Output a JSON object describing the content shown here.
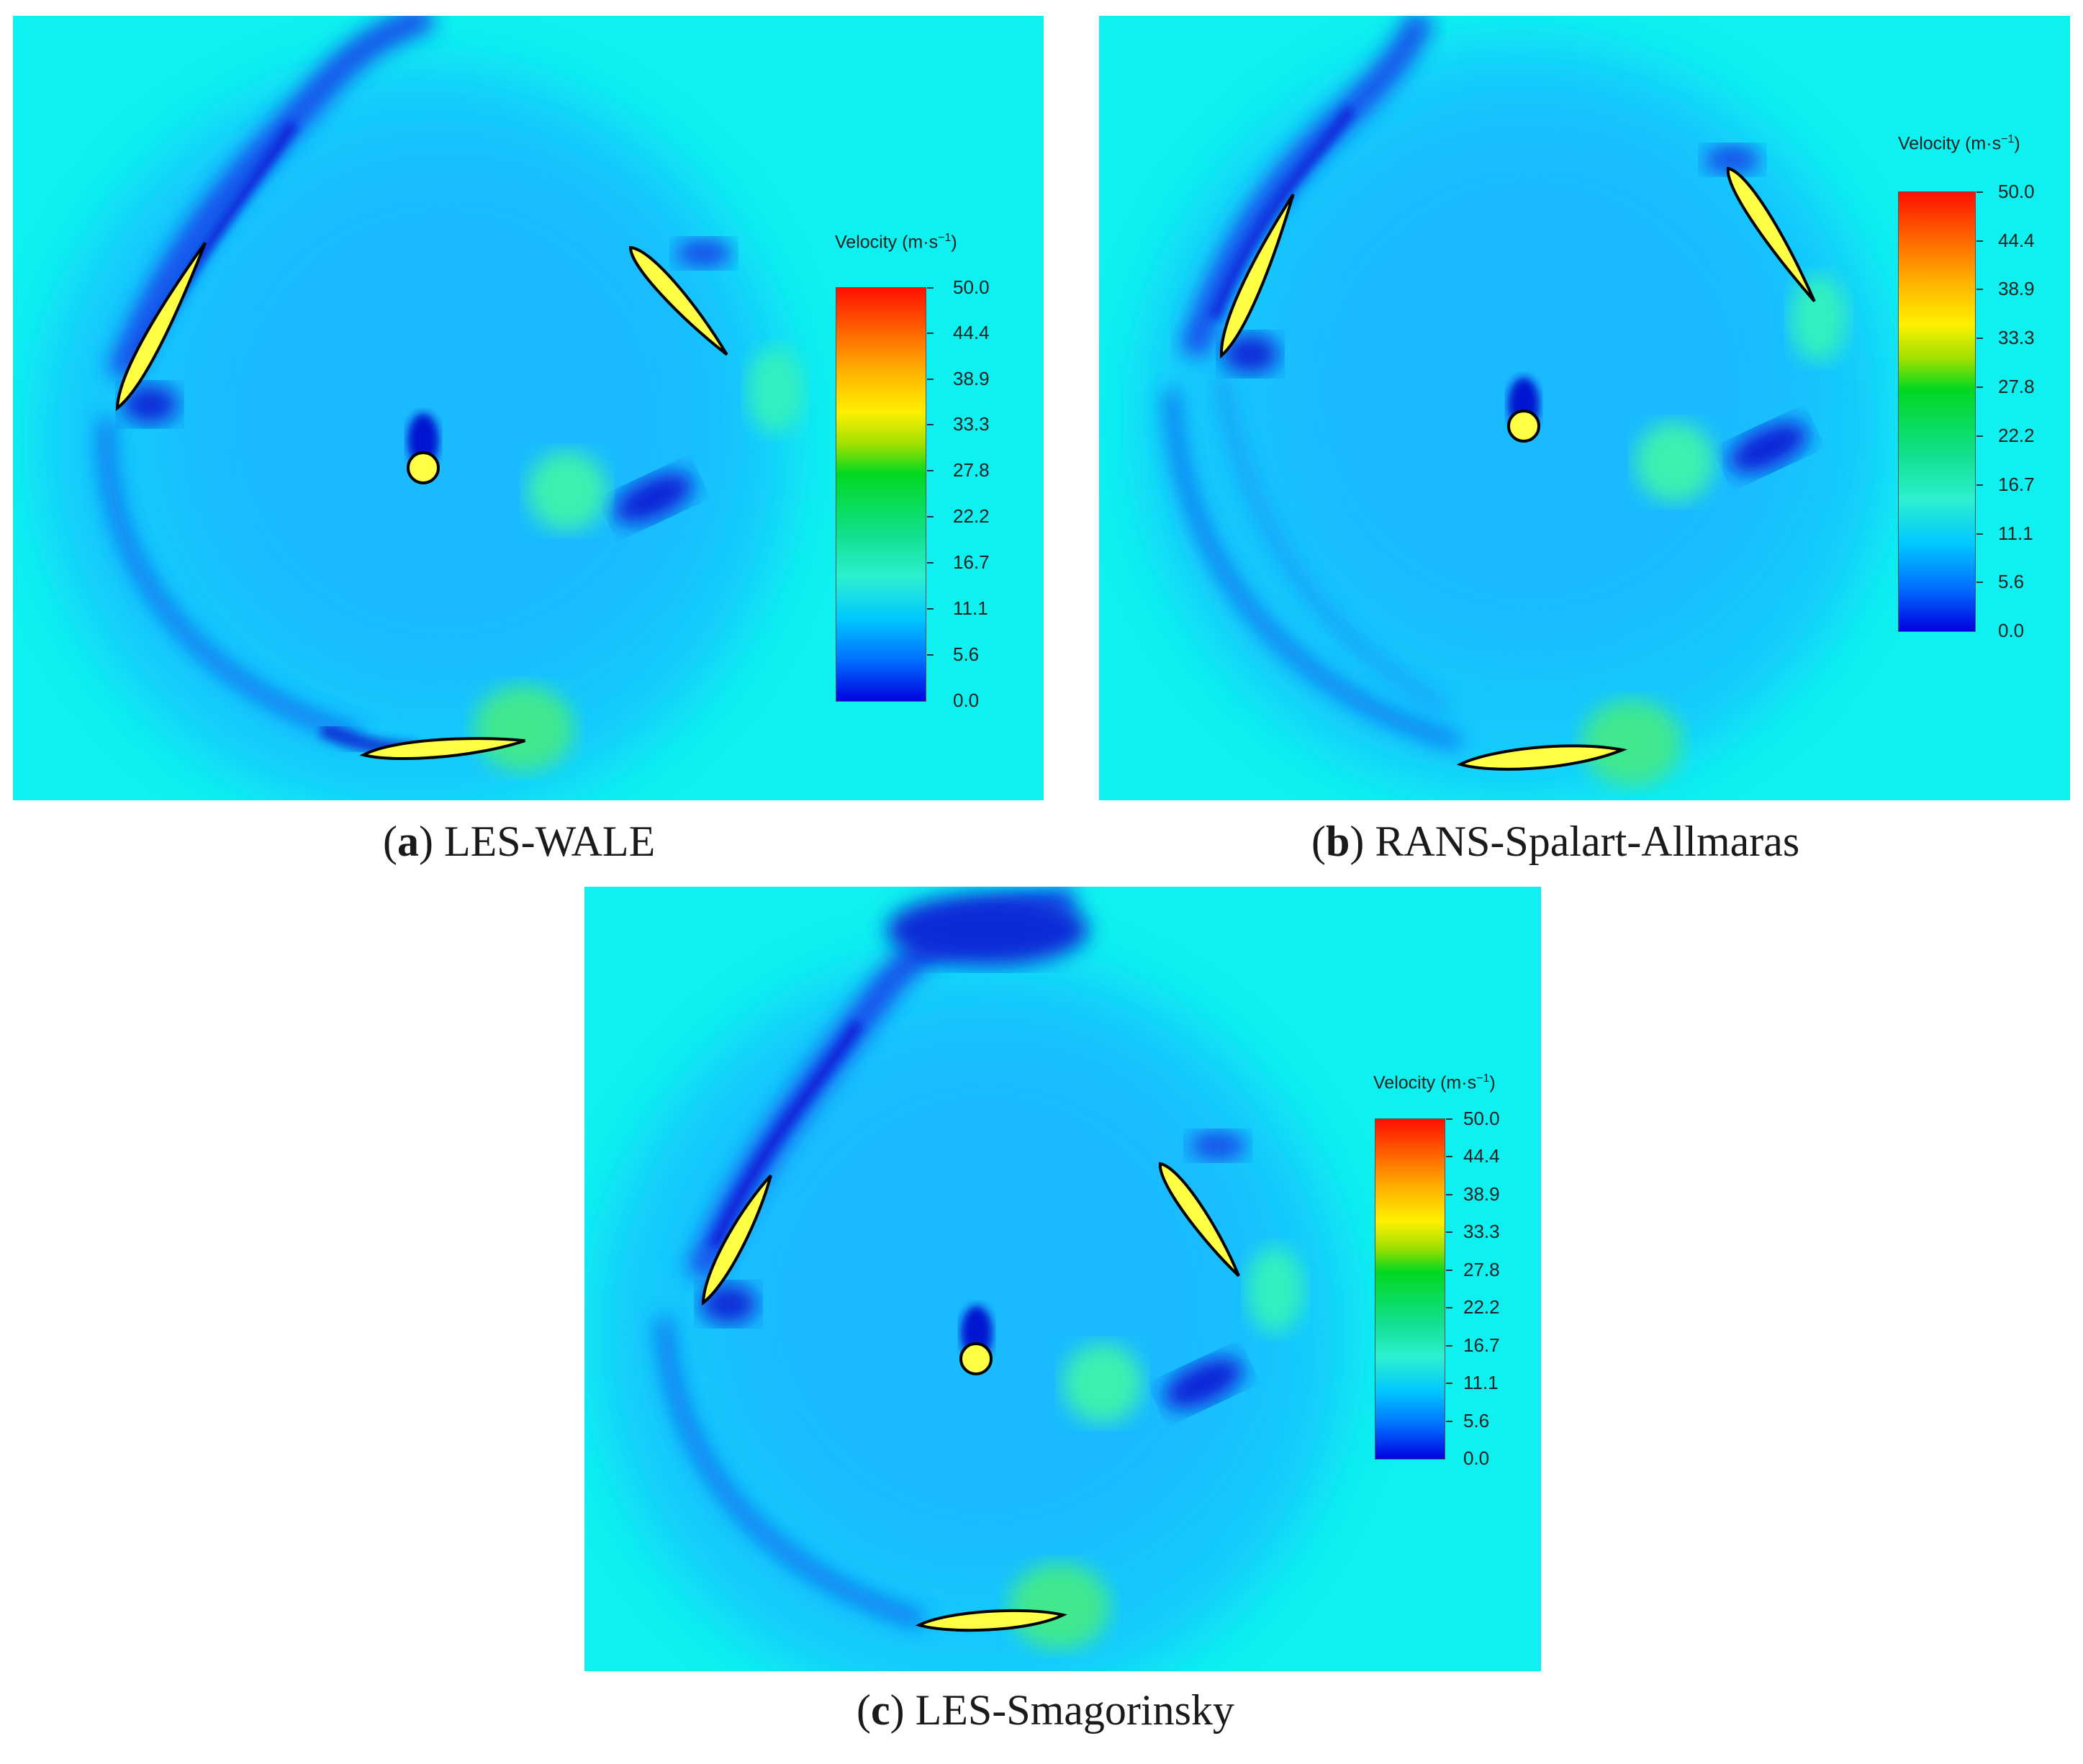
{
  "panels": [
    {
      "id": "a",
      "label": "a",
      "caption": "LES-WALE",
      "colorbar": {
        "title": "Velocity (m·s",
        "title_exp": "−1",
        "title_end": ")",
        "ticks": [
          "50.0",
          "44.4",
          "38.9",
          "33.3",
          "27.8",
          "22.2",
          "16.7",
          "11.1",
          "5.6",
          "0.0"
        ]
      }
    },
    {
      "id": "b",
      "label": "b",
      "caption": "RANS-Spalart-Allmaras",
      "colorbar": {
        "title": "Velocity (m·s",
        "title_exp": "−1",
        "title_end": ")",
        "ticks": [
          "50.0",
          "44.4",
          "38.9",
          "33.3",
          "27.8",
          "22.2",
          "16.7",
          "11.1",
          "5.6",
          "0.0"
        ]
      }
    },
    {
      "id": "c",
      "label": "c",
      "caption": "LES-Smagorinsky",
      "colorbar": {
        "title": "Velocity (m·s",
        "title_exp": "−1",
        "title_end": ")",
        "ticks": [
          "50.0",
          "44.4",
          "38.9",
          "33.3",
          "27.8",
          "22.2",
          "16.7",
          "11.1",
          "5.6",
          "0.0"
        ]
      }
    }
  ],
  "colors": {
    "background_flow": "#0ff0f0",
    "blade_fill": "#ffff44",
    "blade_outline": "#000000",
    "low_velocity": "#0000e0",
    "mid_velocity": "#1fa8ff"
  }
}
